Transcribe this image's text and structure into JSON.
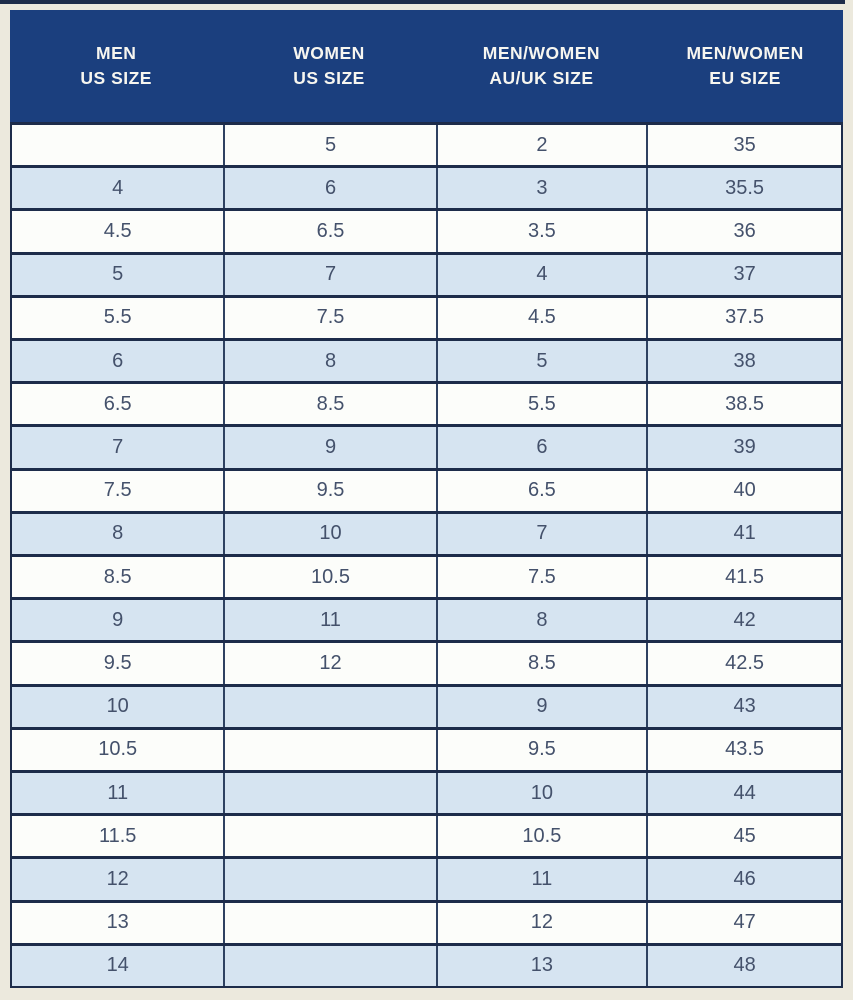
{
  "colors": {
    "background": "#ece9dd",
    "header_bg": "#1b3f7e",
    "header_text": "#f7f6f0",
    "row_bg": "#fcfdfa",
    "row_alt_bg": "#d6e4f1",
    "border_dark": "#1d2c4a",
    "border_mid": "#2e4161",
    "cell_text": "#44516b"
  },
  "chart_data": {
    "type": "table",
    "columns": [
      {
        "key": "men-us",
        "line1": "MEN",
        "line2": "US SIZE"
      },
      {
        "key": "women-us",
        "line1": "WOMEN",
        "line2": "US SIZE"
      },
      {
        "key": "au-uk",
        "line1": "MEN/WOMEN",
        "line2": "AU/UK SIZE"
      },
      {
        "key": "eu",
        "line1": "MEN/WOMEN",
        "line2": "EU SIZE"
      }
    ],
    "rows": [
      [
        "",
        "5",
        "2",
        "35"
      ],
      [
        "4",
        "6",
        "3",
        "35.5"
      ],
      [
        "4.5",
        "6.5",
        "3.5",
        "36"
      ],
      [
        "5",
        "7",
        "4",
        "37"
      ],
      [
        "5.5",
        "7.5",
        "4.5",
        "37.5"
      ],
      [
        "6",
        "8",
        "5",
        "38"
      ],
      [
        "6.5",
        "8.5",
        "5.5",
        "38.5"
      ],
      [
        "7",
        "9",
        "6",
        "39"
      ],
      [
        "7.5",
        "9.5",
        "6.5",
        "40"
      ],
      [
        "8",
        "10",
        "7",
        "41"
      ],
      [
        "8.5",
        "10.5",
        "7.5",
        "41.5"
      ],
      [
        "9",
        "11",
        "8",
        "42"
      ],
      [
        "9.5",
        "12",
        "8.5",
        "42.5"
      ],
      [
        "10",
        "",
        "9",
        "43"
      ],
      [
        "10.5",
        "",
        "9.5",
        "43.5"
      ],
      [
        "11",
        "",
        "10",
        "44"
      ],
      [
        "11.5",
        "",
        "10.5",
        "45"
      ],
      [
        "12",
        "",
        "11",
        "46"
      ],
      [
        "13",
        "",
        "12",
        "47"
      ],
      [
        "14",
        "",
        "13",
        "48"
      ]
    ]
  }
}
